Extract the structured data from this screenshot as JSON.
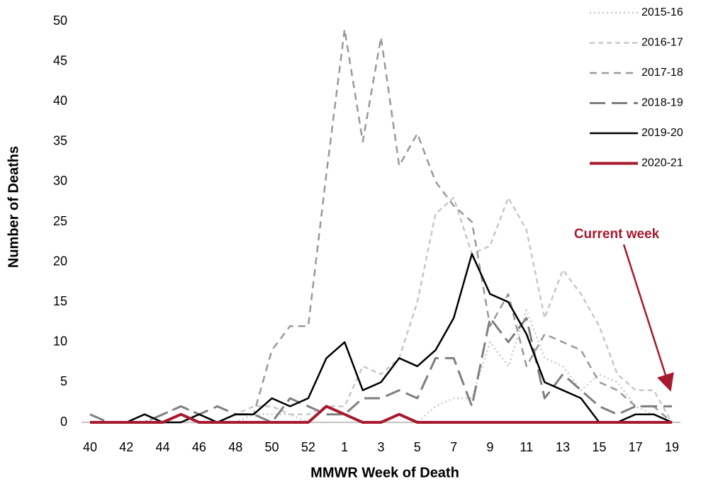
{
  "chart_data": {
    "type": "line",
    "ylabel": "Number of Deaths",
    "xlabel": "MMWR Week of Death",
    "annotation": "Current week",
    "categories": [
      "40",
      null,
      "42",
      null,
      "44",
      null,
      "46",
      null,
      "48",
      null,
      "50",
      null,
      "52",
      null,
      "1",
      null,
      "3",
      null,
      "5",
      null,
      "7",
      null,
      "9",
      null,
      "11",
      null,
      "13",
      null,
      "15",
      null,
      "17",
      null,
      "19"
    ],
    "ylim": [
      0,
      50
    ],
    "yticks": [
      0,
      5,
      10,
      15,
      20,
      25,
      30,
      35,
      40,
      45,
      50
    ],
    "series": [
      {
        "name": "2015-16",
        "color": "#c8c8c8",
        "values": [
          0,
          0,
          0,
          0,
          0,
          0,
          0,
          0,
          0,
          1,
          1,
          1,
          0,
          0,
          0,
          0,
          0,
          0,
          0,
          2,
          3,
          3,
          10,
          7,
          14,
          8,
          7,
          4,
          6,
          5,
          2,
          1,
          0
        ]
      },
      {
        "name": "2016-17",
        "color": "#c8c8c8",
        "values": [
          0,
          0,
          0,
          0,
          0,
          0,
          0,
          0,
          1,
          2,
          2,
          1,
          1,
          2,
          2,
          7,
          6,
          8,
          15,
          26,
          28,
          21,
          22,
          28,
          24,
          13,
          19,
          16,
          12,
          6,
          4,
          4,
          0
        ]
      },
      {
        "name": "2017-18",
        "color": "#999999",
        "values": [
          0,
          0,
          0,
          0,
          1,
          2,
          1,
          0,
          1,
          1,
          9,
          12,
          12,
          31,
          49,
          35,
          48,
          32,
          36,
          30,
          27,
          25,
          12,
          16,
          7,
          11,
          10,
          9,
          5,
          4,
          2,
          2,
          0
        ]
      },
      {
        "name": "2018-19",
        "color": "#7f7f7f",
        "values": [
          1,
          0,
          0,
          0,
          1,
          2,
          1,
          2,
          1,
          1,
          0,
          3,
          2,
          1,
          1,
          3,
          3,
          4,
          3,
          8,
          8,
          2,
          13,
          10,
          13,
          3,
          6,
          4,
          2,
          1,
          2,
          2,
          2
        ]
      },
      {
        "name": "2019-20",
        "color": "#000000",
        "values": [
          0,
          0,
          0,
          1,
          0,
          0,
          1,
          0,
          1,
          1,
          3,
          2,
          3,
          8,
          10,
          4,
          5,
          8,
          7,
          9,
          13,
          21,
          16,
          15,
          11,
          5,
          4,
          3,
          0,
          0,
          1,
          1,
          0
        ]
      },
      {
        "name": "2020-21",
        "color": "#a6192e",
        "values": [
          0,
          0,
          0,
          0,
          0,
          1,
          0,
          0,
          0,
          0,
          0,
          0,
          0,
          2,
          1,
          0,
          0,
          1,
          0,
          0,
          0,
          0,
          0,
          0,
          0,
          0,
          0,
          0,
          0,
          0,
          0,
          0,
          0
        ]
      }
    ]
  }
}
